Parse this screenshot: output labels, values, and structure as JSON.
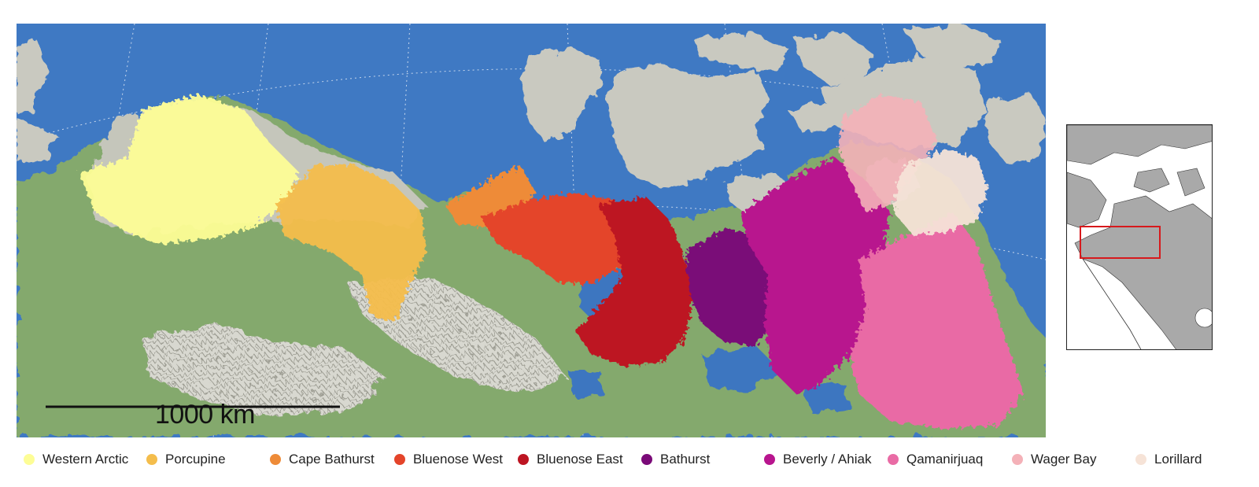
{
  "map": {
    "scale_bar_label": "1000 km",
    "inset_label": "",
    "colors": {
      "ocean": "#3f79c3",
      "land_green": "#7fa369",
      "land_gray": "#c9c9c0",
      "mountain": "#dcdcd5",
      "lake": "#3e76c0",
      "inset_land": "#a9a9a9",
      "inset_box": "#d7191c"
    }
  },
  "legend": {
    "items": [
      {
        "label": "Western Arctic",
        "color": "#fdfd96"
      },
      {
        "label": "Porcupine",
        "color": "#f4bd4c"
      },
      {
        "label": "Cape Bathurst",
        "color": "#ee8b38"
      },
      {
        "label": "Bluenose West",
        "color": "#e4442a"
      },
      {
        "label": "Bluenose East",
        "color": "#bd1522"
      },
      {
        "label": "Bathurst",
        "color": "#7a0a78"
      },
      {
        "label": "Beverly / Ahiak",
        "color": "#b8158e"
      },
      {
        "label": "Qamanirjuaq",
        "color": "#e96ba5"
      },
      {
        "label": "Wager Bay",
        "color": "#f4b1b8"
      },
      {
        "label": "Lorillard",
        "color": "#f6e3d7"
      }
    ]
  }
}
